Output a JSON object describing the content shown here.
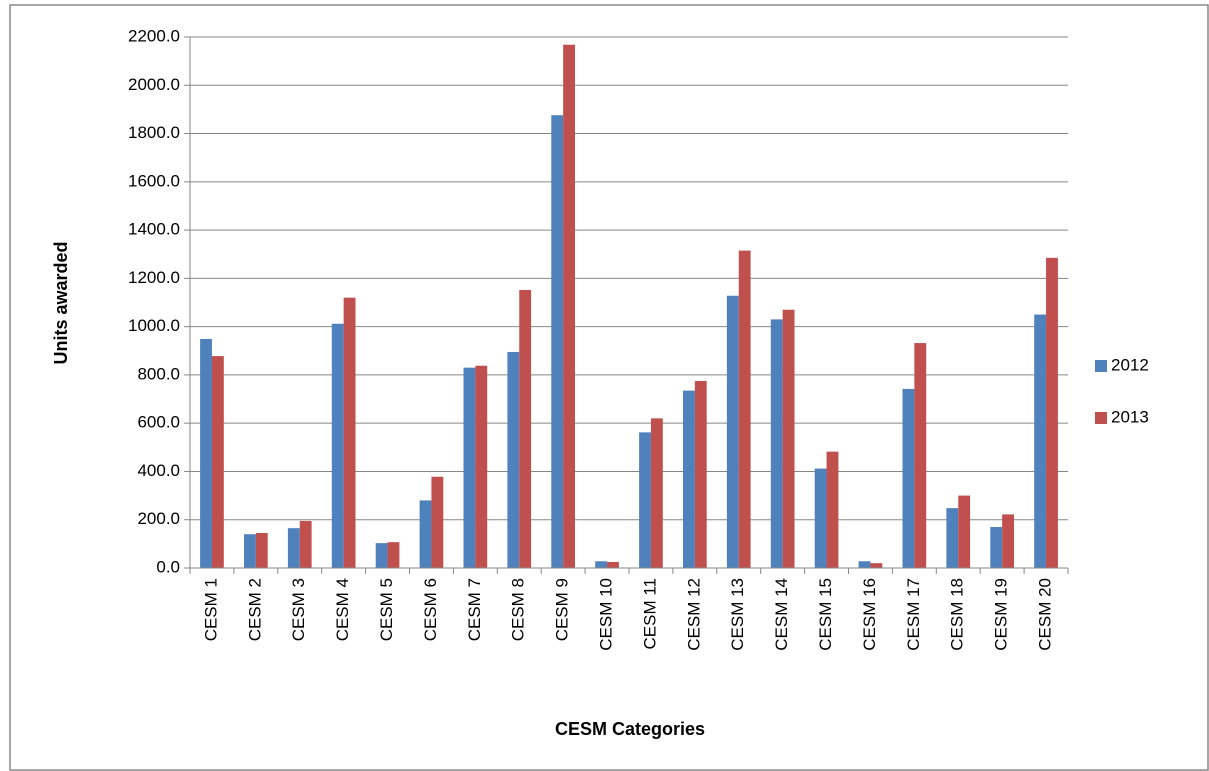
{
  "chart_data": {
    "type": "bar",
    "x_label": "CESM Categories",
    "y_label": "Units awarded",
    "categories": [
      "CESM 1",
      "CESM 2",
      "CESM 3",
      "CESM 4",
      "CESM 5",
      "CESM 6",
      "CESM 7",
      "CESM 8",
      "CESM 9",
      "CESM 10",
      "CESM 11",
      "CESM 12",
      "CESM 13",
      "CESM 14",
      "CESM 15",
      "CESM 16",
      "CESM 17",
      "CESM 18",
      "CESM 19",
      "CESM 20"
    ],
    "series": [
      {
        "name": "2012",
        "color": "#4f81bd",
        "values": [
          949,
          140,
          165,
          1012,
          103,
          280,
          830,
          895,
          1876,
          28,
          562,
          735,
          1128,
          1030,
          412,
          28,
          742,
          248,
          170,
          1050
        ]
      },
      {
        "name": "2013",
        "color": "#c0504d",
        "values": [
          878,
          145,
          195,
          1120,
          107,
          378,
          838,
          1152,
          2168,
          25,
          620,
          775,
          1315,
          1070,
          482,
          20,
          932,
          300,
          222,
          1285
        ]
      }
    ],
    "ylim": [
      0,
      2200
    ],
    "yticks": [
      {
        "value": 0,
        "label": "0.0"
      },
      {
        "value": 200,
        "label": "200.0"
      },
      {
        "value": 400,
        "label": "400.0"
      },
      {
        "value": 600,
        "label": "600.0"
      },
      {
        "value": 800,
        "label": "800.0"
      },
      {
        "value": 1000,
        "label": "1000.0"
      },
      {
        "value": 1200,
        "label": "1200.0"
      },
      {
        "value": 1400,
        "label": "1400.0"
      },
      {
        "value": 1600,
        "label": "1600.0"
      },
      {
        "value": 1800,
        "label": "1800.0"
      },
      {
        "value": 2000,
        "label": "2000.0"
      },
      {
        "value": 2200,
        "label": "2200.0"
      }
    ],
    "grid": true,
    "legend": "right"
  }
}
